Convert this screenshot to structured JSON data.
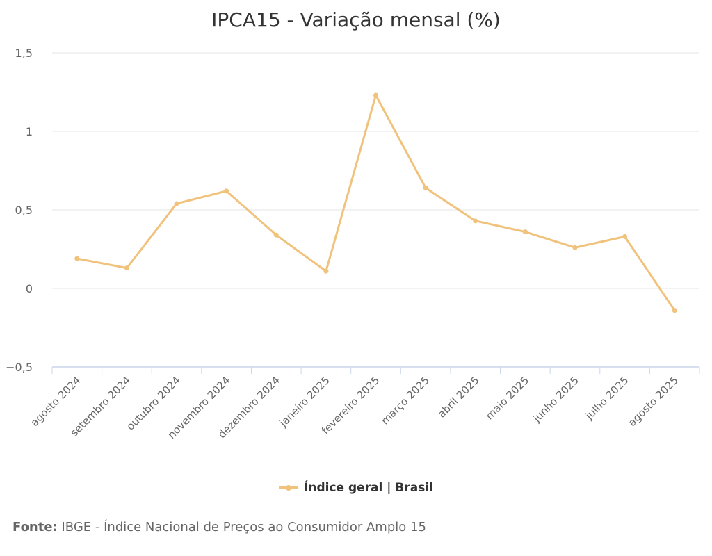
{
  "chart_data": {
    "type": "line",
    "title": "IPCA15 - Variação mensal (%)",
    "xlabel": "",
    "ylabel": "",
    "categories": [
      "agosto 2024",
      "setembro 2024",
      "outubro 2024",
      "novembro 2024",
      "dezembro 2024",
      "janeiro 2025",
      "fevereiro 2025",
      "março 2025",
      "abril 2025",
      "maio 2025",
      "junho 2025",
      "julho 2025",
      "agosto 2025"
    ],
    "series": [
      {
        "name": "Índice geral | Brasil",
        "color": "#f0c27b",
        "values": [
          0.19,
          0.13,
          0.54,
          0.62,
          0.34,
          0.11,
          1.23,
          0.64,
          0.43,
          0.36,
          0.26,
          0.33,
          -0.14
        ]
      }
    ],
    "ylim": [
      -0.5,
      1.5
    ],
    "yticks": [
      -0.5,
      0,
      0.5,
      1,
      1.5
    ],
    "ytick_labels": [
      "−0,5",
      "0",
      "0,5",
      "1",
      "1,5"
    ],
    "grid": true,
    "legend_position": "bottom"
  },
  "source": {
    "label": "Fonte:",
    "text": "IBGE - Índice Nacional de Preços ao Consumidor Amplo 15"
  }
}
